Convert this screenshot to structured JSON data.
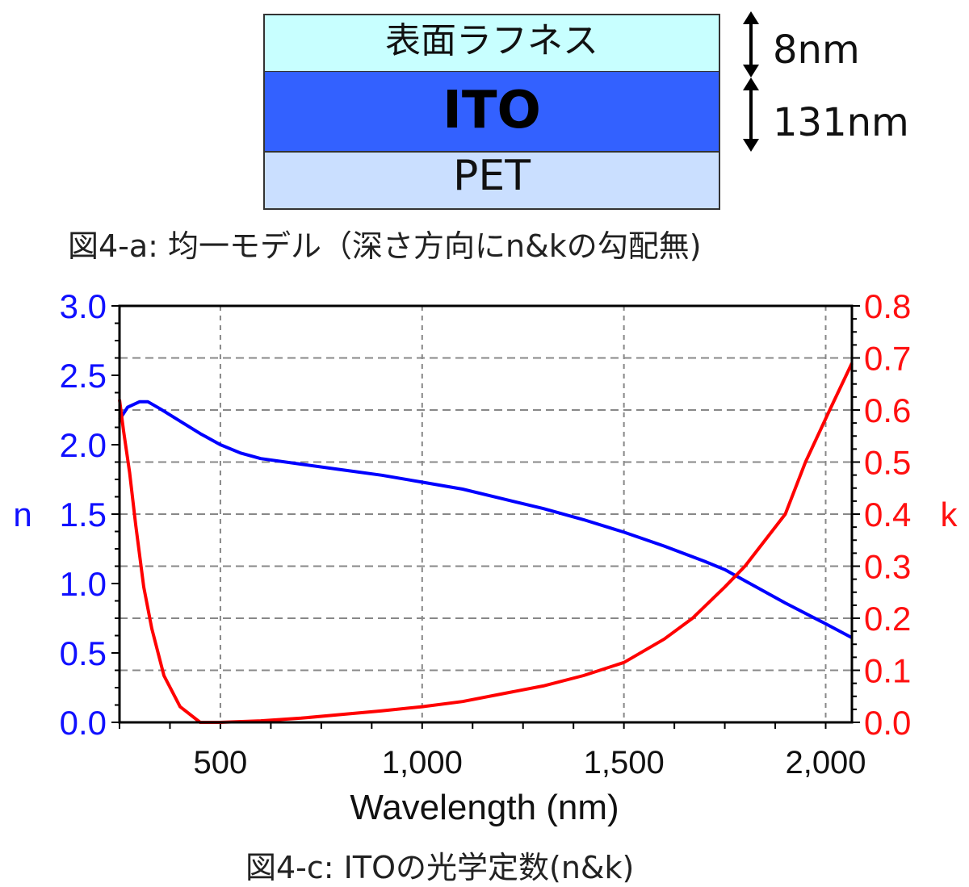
{
  "diagram": {
    "layers": [
      {
        "name": "表面ラフネス",
        "thickness": "8nm",
        "color": "#c8ffff"
      },
      {
        "name": "ITO",
        "thickness": "131nm",
        "color": "#3361ff"
      },
      {
        "name": "PET",
        "thickness": "",
        "color": "#cadfff"
      }
    ],
    "caption": "図4-a: 均一モデル（深さ方向にn&kの勾配無)"
  },
  "chart_data": {
    "type": "line",
    "title": "",
    "caption": "図4-c: ITOの光学定数(n&k)",
    "xlabel": "Wavelength (nm)",
    "ylabel": "n",
    "y2label": "k",
    "xlim": [
      250,
      2065
    ],
    "ylim": [
      0,
      3.0
    ],
    "y2lim": [
      0,
      0.8
    ],
    "x_ticks": [
      500,
      1000,
      1500,
      2000
    ],
    "x_tick_labels": [
      "500",
      "1,000",
      "1,500",
      "2,000"
    ],
    "y_ticks": [
      0,
      0.5,
      1.0,
      1.5,
      2.0,
      2.5,
      3.0
    ],
    "y_tick_labels": [
      "0.0",
      "0.5",
      "1.0",
      "1.5",
      "2.0",
      "2.5",
      "3.0"
    ],
    "y2_ticks": [
      0,
      0.1,
      0.2,
      0.3,
      0.4,
      0.5,
      0.6,
      0.7,
      0.8
    ],
    "y2_tick_labels": [
      "0.0",
      "0.1",
      "0.2",
      "0.3",
      "0.4",
      "0.5",
      "0.6",
      "0.7",
      "0.8"
    ],
    "grid": true,
    "series": [
      {
        "name": "n",
        "axis": "left",
        "color": "#0000ff",
        "x": [
          250,
          270,
          300,
          320,
          350,
          400,
          450,
          500,
          550,
          600,
          700,
          800,
          900,
          1000,
          1100,
          1200,
          1300,
          1400,
          1500,
          1600,
          1700,
          1750,
          1800,
          1900,
          2000,
          2065
        ],
        "y": [
          2.18,
          2.27,
          2.31,
          2.31,
          2.26,
          2.17,
          2.08,
          2.0,
          1.94,
          1.9,
          1.86,
          1.82,
          1.78,
          1.73,
          1.68,
          1.61,
          1.54,
          1.46,
          1.37,
          1.27,
          1.16,
          1.1,
          1.02,
          0.86,
          0.71,
          0.61
        ]
      },
      {
        "name": "k",
        "axis": "right",
        "color": "#ff0000",
        "x": [
          250,
          260,
          275,
          290,
          310,
          330,
          360,
          400,
          450,
          500,
          600,
          700,
          800,
          900,
          1000,
          1100,
          1200,
          1300,
          1400,
          1500,
          1600,
          1670,
          1750,
          1800,
          1900,
          1950,
          2010,
          2065
        ],
        "y": [
          0.62,
          0.56,
          0.48,
          0.38,
          0.26,
          0.18,
          0.09,
          0.03,
          0.0,
          0.0,
          0.003,
          0.008,
          0.015,
          0.022,
          0.03,
          0.04,
          0.055,
          0.07,
          0.09,
          0.115,
          0.16,
          0.2,
          0.26,
          0.3,
          0.4,
          0.5,
          0.6,
          0.69
        ]
      }
    ]
  }
}
